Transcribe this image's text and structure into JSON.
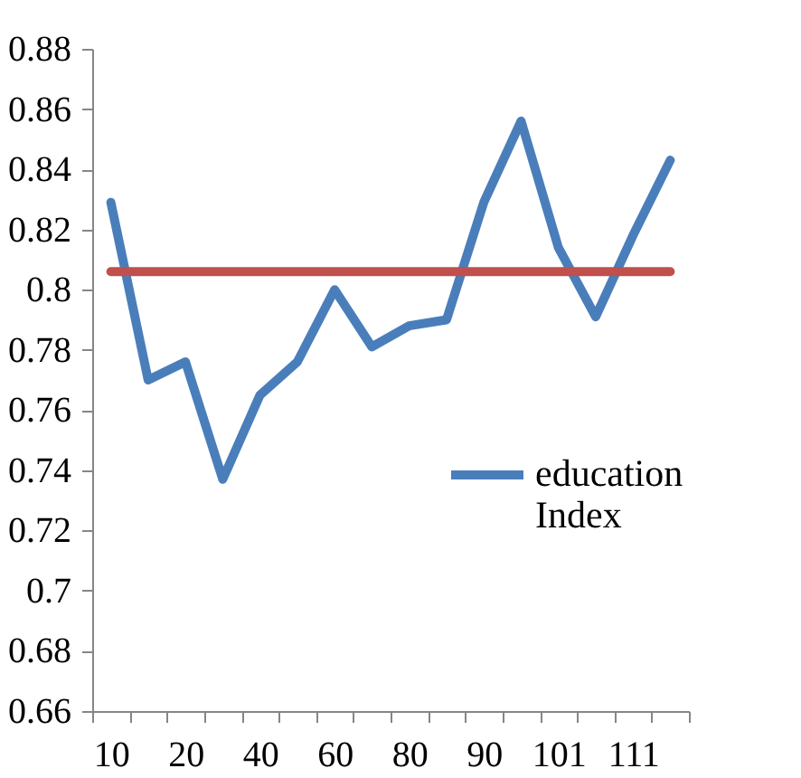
{
  "chart_data": {
    "type": "line",
    "categories": [
      "10",
      null,
      "20",
      null,
      "40",
      null,
      "60",
      null,
      "80",
      null,
      "90",
      null,
      "101",
      null,
      "111",
      null
    ],
    "series": [
      {
        "name": "education Index",
        "color": "#4a7ebb",
        "values": [
          0.829,
          0.77,
          0.776,
          0.737,
          0.765,
          0.776,
          0.8,
          0.781,
          0.788,
          0.79,
          0.829,
          0.856,
          0.814,
          0.791,
          0.818,
          0.843
        ]
      },
      {
        "color": "#c0504d",
        "values": [
          0.806,
          0.806,
          0.806,
          0.806,
          0.806,
          0.806,
          0.806,
          0.806,
          0.806,
          0.806,
          0.806,
          0.806,
          0.806,
          0.806,
          0.806,
          0.806
        ]
      }
    ],
    "ylim": [
      0.66,
      0.88
    ],
    "yticks": [
      0.66,
      0.68,
      0.7,
      0.72,
      0.74,
      0.76,
      0.78,
      0.8,
      0.82,
      0.84,
      0.86,
      0.88
    ],
    "grid": false,
    "legend": "right",
    "marker": "none",
    "line_style": "solid"
  }
}
